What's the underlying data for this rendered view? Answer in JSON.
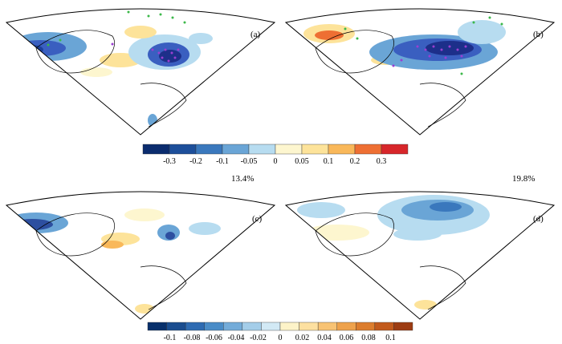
{
  "panels": [
    {
      "label": "(a)",
      "pattern": "a"
    },
    {
      "label": "(b)",
      "pattern": "b"
    },
    {
      "label": "(c)",
      "pattern": "c"
    },
    {
      "label": "(d)",
      "pattern": "d"
    }
  ],
  "variance_labels": [
    "13.4%",
    "19.8%"
  ],
  "colorbars": [
    {
      "name": "top",
      "ticks": [
        "-0.3",
        "-0.2",
        "-0.1",
        "-0.05",
        "0",
        "0.05",
        "0.1",
        "0.2",
        "0.3"
      ],
      "colors": [
        "#0b2c6e",
        "#1d4f9a",
        "#3a78bd",
        "#6aa5d6",
        "#b7dcf0",
        "#fdf6cf",
        "#fde39a",
        "#f9b85a",
        "#ee6f33",
        "#d7262a"
      ]
    },
    {
      "name": "bottom",
      "ticks": [
        "-0.1",
        "-0.08",
        "-0.06",
        "-0.04",
        "-0.02",
        "0",
        "0.02",
        "0.04",
        "0.06",
        "0.08",
        "0.1"
      ],
      "colors": [
        "#08306b",
        "#1a4d8f",
        "#2e6bb2",
        "#4a8cc7",
        "#74acd9",
        "#a4cde9",
        "#d2e9f5",
        "#fdf3c8",
        "#fde0a0",
        "#f8c374",
        "#eea24c",
        "#dc7d2d",
        "#c25a1c",
        "#9d3c12"
      ]
    }
  ]
}
